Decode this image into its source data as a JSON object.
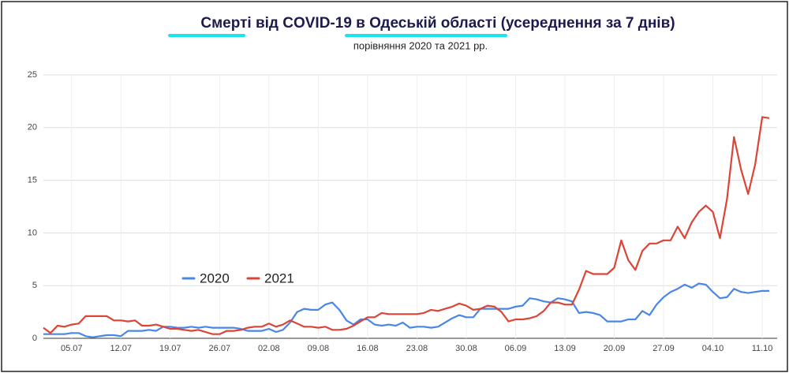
{
  "chart_data": {
    "type": "line",
    "title": "Смерті від COVID-19 в Одеській області (усереднення за 7 днів)",
    "subtitle": "порівняння 2020 та 2021 рр.",
    "categories": [
      null,
      null,
      null,
      null,
      "05.07",
      null,
      null,
      null,
      null,
      null,
      null,
      "12.07",
      null,
      null,
      null,
      null,
      null,
      null,
      "19.07",
      null,
      null,
      null,
      null,
      null,
      null,
      "26.07",
      null,
      null,
      null,
      null,
      null,
      null,
      "02.08",
      null,
      null,
      null,
      null,
      null,
      null,
      "09.08",
      null,
      null,
      null,
      null,
      null,
      null,
      "16.08",
      null,
      null,
      null,
      null,
      null,
      null,
      "23.08",
      null,
      null,
      null,
      null,
      null,
      null,
      "30.08",
      null,
      null,
      null,
      null,
      null,
      null,
      "06.09",
      null,
      null,
      null,
      null,
      null,
      null,
      "13.09",
      null,
      null,
      null,
      null,
      null,
      null,
      "20.09",
      null,
      null,
      null,
      null,
      null,
      null,
      "27.09",
      null,
      null,
      null,
      null,
      null,
      null,
      "04.10",
      null,
      null,
      null,
      null,
      null,
      null,
      "11.10",
      null
    ],
    "series": [
      {
        "name": "2020",
        "color": "#4a86e8",
        "values": [
          0.4,
          0.4,
          0.4,
          0.4,
          0.5,
          0.5,
          0.2,
          0.1,
          0.2,
          0.3,
          0.3,
          0.2,
          0.7,
          0.7,
          0.7,
          0.8,
          0.7,
          1.1,
          1.1,
          1.0,
          1.0,
          1.1,
          1.0,
          1.1,
          1.0,
          1.0,
          1.0,
          1.0,
          0.9,
          0.7,
          0.7,
          0.7,
          0.9,
          0.6,
          0.8,
          1.5,
          2.5,
          2.8,
          2.7,
          2.7,
          3.2,
          3.4,
          2.7,
          1.7,
          1.3,
          1.8,
          1.8,
          1.3,
          1.2,
          1.3,
          1.2,
          1.5,
          1.0,
          1.1,
          1.1,
          1.0,
          1.1,
          1.5,
          1.9,
          2.2,
          2.0,
          2.0,
          2.8,
          2.8,
          2.8,
          2.8,
          2.8,
          3.0,
          3.1,
          3.8,
          3.7,
          3.5,
          3.4,
          3.8,
          3.7,
          3.5,
          2.4,
          2.5,
          2.4,
          2.2,
          1.6,
          1.6,
          1.6,
          1.8,
          1.8,
          2.6,
          2.2,
          3.2,
          3.9,
          4.4,
          4.7,
          5.1,
          4.8,
          5.2,
          5.1,
          4.4,
          3.8,
          3.9,
          4.7,
          4.4,
          4.3,
          4.4,
          4.5,
          4.5
        ]
      },
      {
        "name": "2021",
        "color": "#db4437",
        "values": [
          1.0,
          0.5,
          1.2,
          1.1,
          1.3,
          1.4,
          2.1,
          2.1,
          2.1,
          2.1,
          1.7,
          1.7,
          1.6,
          1.7,
          1.2,
          1.2,
          1.3,
          1.1,
          0.9,
          0.9,
          0.8,
          0.7,
          0.8,
          0.6,
          0.4,
          0.4,
          0.7,
          0.7,
          0.8,
          1.0,
          1.1,
          1.1,
          1.4,
          1.1,
          1.3,
          1.7,
          1.4,
          1.1,
          1.1,
          1.0,
          1.1,
          0.8,
          0.8,
          0.9,
          1.2,
          1.6,
          2.0,
          2.0,
          2.4,
          2.3,
          2.3,
          2.3,
          2.3,
          2.3,
          2.4,
          2.7,
          2.6,
          2.8,
          3.0,
          3.3,
          3.1,
          2.7,
          2.8,
          3.1,
          3.0,
          2.5,
          1.6,
          1.8,
          1.8,
          1.9,
          2.1,
          2.6,
          3.4,
          3.4,
          3.2,
          3.2,
          4.6,
          6.4,
          6.1,
          6.1,
          6.1,
          6.7,
          9.3,
          7.4,
          6.5,
          8.3,
          9.0,
          9.0,
          9.3,
          9.3,
          10.6,
          9.5,
          11.0,
          12.0,
          12.6,
          12.0,
          9.5,
          13.2,
          19.1,
          16.0,
          13.7,
          16.5,
          21.0,
          20.9
        ]
      }
    ],
    "ylim": [
      0,
      25
    ],
    "yticks": [
      0,
      5,
      10,
      15,
      20,
      25
    ],
    "grid": true,
    "legend": "left"
  }
}
